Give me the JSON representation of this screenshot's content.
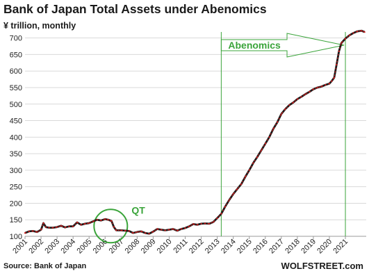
{
  "chart_data": {
    "type": "line",
    "title": "Bank of Japan Total Assets under Abenomics",
    "subtitle": "¥ trillion, monthly",
    "source": "Source: Bank of Japan",
    "brand": "WOLFSTREET.com",
    "ylim": [
      100,
      735
    ],
    "yticks": [
      100,
      150,
      200,
      250,
      300,
      350,
      400,
      450,
      500,
      550,
      600,
      650,
      700
    ],
    "xlim": [
      2001.0,
      2022.3
    ],
    "xticks": [
      2001,
      2002,
      2003,
      2004,
      2005,
      2006,
      2007,
      2008,
      2009,
      2010,
      2011,
      2012,
      2013,
      2014,
      2015,
      2016,
      2017,
      2018,
      2019,
      2020,
      2021
    ],
    "grid": true,
    "annotations": {
      "qt_label": "QT",
      "qt_circle_center": [
        2006.35,
        131
      ],
      "abenomics_label": "Abenomics",
      "abenomics_start": 2013.25,
      "abenomics_end": 2021.0
    },
    "series": [
      {
        "name": "Total Assets",
        "line_color": "#1a1a1a",
        "marker_color": "#d42020",
        "x": [
          2001.0,
          2001.25,
          2001.5,
          2001.75,
          2002.0,
          2002.15,
          2002.3,
          2002.5,
          2002.75,
          2003.0,
          2003.25,
          2003.5,
          2003.75,
          2004.0,
          2004.25,
          2004.5,
          2004.75,
          2005.0,
          2005.25,
          2005.5,
          2005.75,
          2006.0,
          2006.2,
          2006.4,
          2006.55,
          2006.7,
          2007.0,
          2007.25,
          2007.5,
          2007.75,
          2008.0,
          2008.25,
          2008.5,
          2008.75,
          2009.0,
          2009.25,
          2009.5,
          2009.75,
          2010.0,
          2010.25,
          2010.5,
          2010.75,
          2011.0,
          2011.25,
          2011.5,
          2011.75,
          2012.0,
          2012.25,
          2012.5,
          2012.75,
          2013.0,
          2013.25,
          2013.5,
          2013.75,
          2014.0,
          2014.25,
          2014.5,
          2014.75,
          2015.0,
          2015.25,
          2015.5,
          2015.75,
          2016.0,
          2016.25,
          2016.5,
          2016.75,
          2017.0,
          2017.25,
          2017.5,
          2017.75,
          2018.0,
          2018.25,
          2018.5,
          2018.75,
          2019.0,
          2019.25,
          2019.5,
          2019.75,
          2020.0,
          2020.15,
          2020.3,
          2020.45,
          2020.6,
          2020.75,
          2021.0,
          2021.25,
          2021.5,
          2021.75,
          2022.0,
          2022.2
        ],
        "y": [
          110,
          115,
          116,
          113,
          120,
          140,
          128,
          126,
          126,
          128,
          132,
          127,
          130,
          130,
          142,
          135,
          138,
          140,
          145,
          150,
          148,
          152,
          150,
          146,
          128,
          118,
          118,
          117,
          116,
          110,
          113,
          115,
          110,
          108,
          114,
          122,
          120,
          118,
          120,
          122,
          117,
          122,
          125,
          130,
          137,
          135,
          138,
          139,
          138,
          143,
          155,
          168,
          190,
          210,
          228,
          243,
          258,
          280,
          300,
          322,
          340,
          360,
          380,
          400,
          425,
          445,
          470,
          485,
          497,
          505,
          515,
          522,
          530,
          537,
          545,
          550,
          553,
          558,
          562,
          570,
          580,
          620,
          660,
          685,
          698,
          708,
          715,
          720,
          722,
          718
        ]
      }
    ]
  }
}
